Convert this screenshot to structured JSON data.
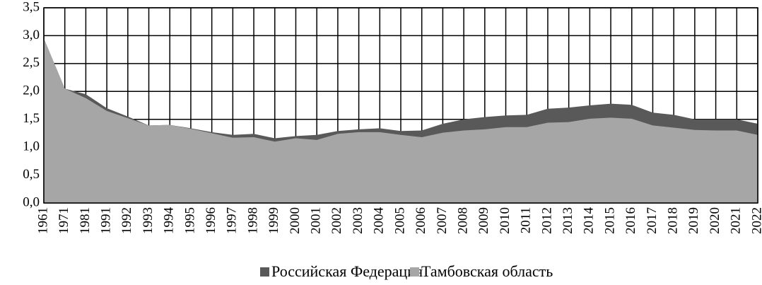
{
  "chart_data": {
    "type": "area",
    "categories": [
      "1961",
      "1971",
      "1981",
      "1991",
      "1992",
      "1993",
      "1994",
      "1995",
      "1996",
      "1997",
      "1998",
      "1999",
      "2000",
      "2001",
      "2002",
      "2003",
      "2004",
      "2005",
      "2006",
      "2007",
      "2008",
      "2009",
      "2010",
      "2011",
      "2012",
      "2013",
      "2014",
      "2015",
      "2016",
      "2017",
      "2018",
      "2019",
      "2020",
      "2021",
      "2022"
    ],
    "series": [
      {
        "name": "Российская Федерация",
        "color": "#595959",
        "values": [
          2.95,
          2.05,
          1.95,
          1.7,
          1.55,
          1.39,
          1.4,
          1.34,
          1.27,
          1.22,
          1.24,
          1.16,
          1.2,
          1.22,
          1.29,
          1.32,
          1.34,
          1.29,
          1.3,
          1.42,
          1.5,
          1.54,
          1.57,
          1.58,
          1.69,
          1.71,
          1.75,
          1.78,
          1.76,
          1.62,
          1.58,
          1.5,
          1.5,
          1.5,
          1.42
        ]
      },
      {
        "name": "Тамбовская область",
        "color": "#a6a6a6",
        "values": [
          2.95,
          2.05,
          1.88,
          1.65,
          1.52,
          1.39,
          1.4,
          1.33,
          1.25,
          1.17,
          1.18,
          1.1,
          1.16,
          1.13,
          1.24,
          1.27,
          1.27,
          1.22,
          1.18,
          1.26,
          1.3,
          1.32,
          1.36,
          1.36,
          1.44,
          1.45,
          1.51,
          1.53,
          1.51,
          1.39,
          1.35,
          1.31,
          1.3,
          1.3,
          1.22
        ]
      }
    ],
    "ylim": [
      0,
      3.5
    ],
    "yticks": [
      {
        "value": 0,
        "label": "0,0"
      },
      {
        "value": 0.5,
        "label": "0,5"
      },
      {
        "value": 1,
        "label": "1,0"
      },
      {
        "value": 1.5,
        "label": "1,5"
      },
      {
        "value": 2,
        "label": "2,0"
      },
      {
        "value": 2.5,
        "label": "2,5"
      },
      {
        "value": 3,
        "label": "3,0"
      },
      {
        "value": 3.5,
        "label": "3,5"
      }
    ],
    "grid": true,
    "legend": "bottom"
  }
}
